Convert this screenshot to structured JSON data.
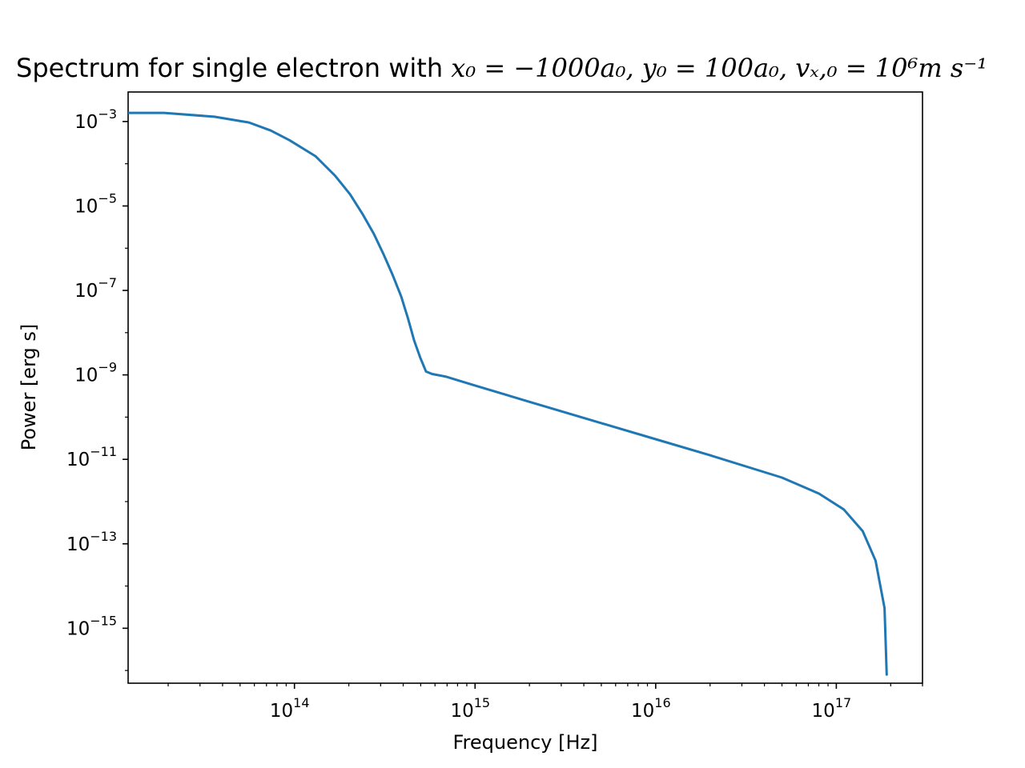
{
  "chart_data": {
    "type": "line",
    "title": {
      "prefix": "Spectrum for single electron with ",
      "math": "x₀ = −1000a₀, y₀ = 100a₀, vₓ,₀ = 10⁶m s⁻¹"
    },
    "xlabel": "Frequency [Hz]",
    "ylabel": "Power [erg s]",
    "xscale": "log",
    "yscale": "log",
    "xlim": [
      12000000000000.0,
      3e+17
    ],
    "ylim": [
      5e-17,
      0.005
    ],
    "grid": false,
    "legend": "none",
    "line_color": "#1f77b4",
    "x_ticks": [
      {
        "base": "10",
        "exp": "14",
        "value": 100000000000000.0
      },
      {
        "base": "10",
        "exp": "15",
        "value": 1000000000000000.0
      },
      {
        "base": "10",
        "exp": "16",
        "value": 1e+16
      },
      {
        "base": "10",
        "exp": "17",
        "value": 1e+17
      }
    ],
    "y_ticks": [
      {
        "base": "10",
        "exp": "−3",
        "value": 0.001
      },
      {
        "base": "10",
        "exp": "−5",
        "value": 1e-05
      },
      {
        "base": "10",
        "exp": "−7",
        "value": 1e-07
      },
      {
        "base": "10",
        "exp": "−9",
        "value": 1e-09
      },
      {
        "base": "10",
        "exp": "−11",
        "value": 1e-11
      },
      {
        "base": "10",
        "exp": "−13",
        "value": 1e-13
      },
      {
        "base": "10",
        "exp": "−15",
        "value": 1e-15
      }
    ],
    "series": [
      {
        "x": [
          12000000000000.0,
          19000000000000.0,
          36000000000000.0,
          56000000000000.0,
          74000000000000.0,
          94000000000000.0,
          131000000000000.0,
          168000000000000.0,
          203000000000000.0,
          238000000000000.0,
          275000000000000.0,
          312000000000000.0,
          350000000000000.0,
          390000000000000.0,
          425000000000000.0,
          460000000000000.0,
          498000000000000.0,
          535000000000000.0,
          578000000000000.0,
          615000000000000.0,
          655000000000000.0,
          695000000000000.0,
          740000000000000.0,
          1000000000000000.0,
          2000000000000000.0,
          5000000000000000.0,
          1e+16,
          2e+16,
          5e+16,
          8e+16,
          1.1e+17,
          1.4e+17,
          1.65e+17,
          1.85e+17,
          1.9e+17
        ],
        "y": [
          0.0016,
          0.0016,
          0.0013,
          0.00095,
          0.00061,
          0.00036,
          0.00015,
          5.2e-05,
          1.9e-05,
          6.5e-06,
          2.2e-06,
          7e-07,
          2.3e-07,
          7.2e-08,
          2.2e-08,
          6.5e-09,
          2.5e-09,
          1.2e-09,
          1.05e-09,
          1e-09,
          9.5e-10,
          9e-10,
          8.3e-10,
          5.6e-10,
          2.3e-10,
          7.2e-11,
          3e-11,
          1.25e-11,
          3.7e-12,
          1.55e-12,
          6.5e-13,
          2e-13,
          4e-14,
          3e-15,
          8e-17
        ]
      }
    ]
  }
}
